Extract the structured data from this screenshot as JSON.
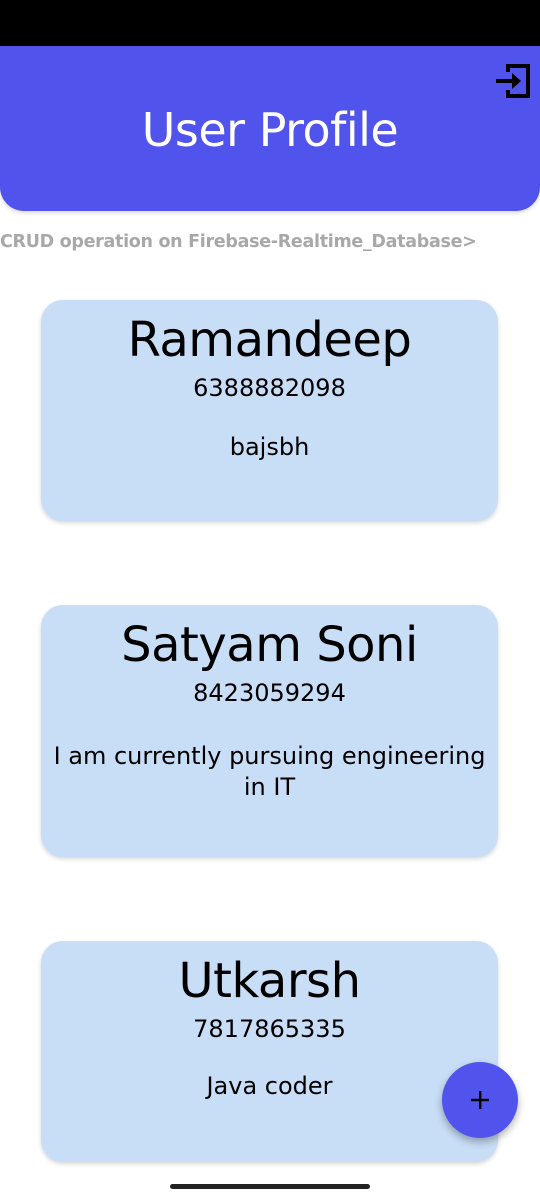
{
  "app_bar": {
    "title": "User Profile",
    "logout_icon": "logout-icon"
  },
  "subtitle": "CRUD operation on Firebase-Realtime_Database>",
  "users": [
    {
      "name": "Ramandeep",
      "phone": "6388882098",
      "about": "bajsbh"
    },
    {
      "name": "Satyam Soni",
      "phone": "8423059294",
      "about": "I am currently pursuing engineering in IT"
    },
    {
      "name": "Utkarsh",
      "phone": "7817865335",
      "about": "Java coder"
    }
  ],
  "fab": {
    "icon": "plus-icon"
  },
  "colors": {
    "primary": "#5154ec",
    "card": "#c8ddf6",
    "subtitle": "#a8a8a8"
  }
}
